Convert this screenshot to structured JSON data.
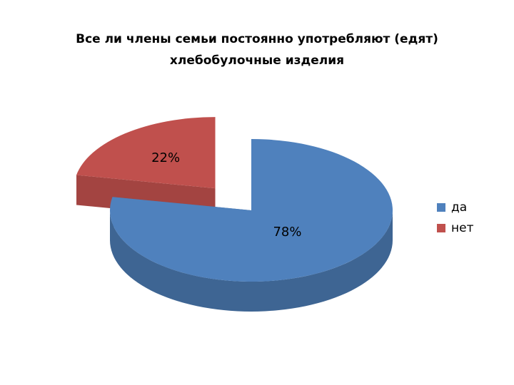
{
  "chart_data": {
    "type": "pie3d",
    "title": "Все ли члены семьи постоянно употребляют (едят) хлебобулочные изделия",
    "categories": [
      "да",
      "нет"
    ],
    "values": [
      78,
      22
    ],
    "value_labels": [
      "78%",
      "22%"
    ],
    "colors": [
      "#4f81bd",
      "#c0504d"
    ],
    "exploded": [
      false,
      true
    ],
    "legend": "right"
  }
}
